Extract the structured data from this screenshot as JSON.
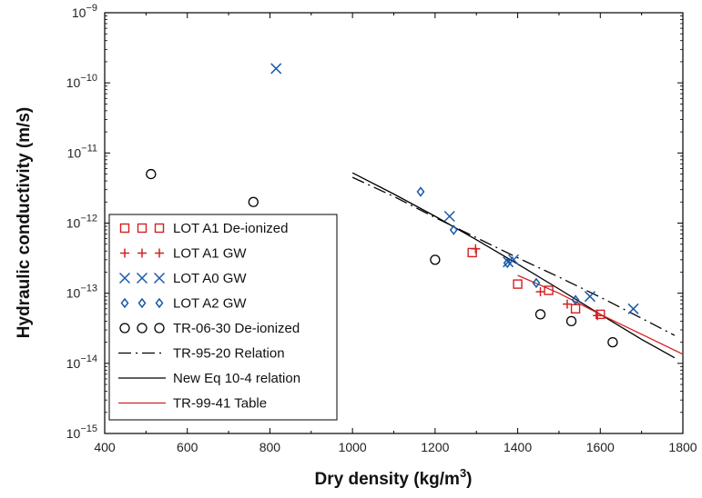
{
  "chart_data": {
    "type": "scatter",
    "title": "",
    "xlabel_main": "Dry density (kg/m",
    "xlabel_sup": "3",
    "xlabel_end": ")",
    "ylabel": "Hydraulic conductivity (m/s)",
    "xlim": [
      400,
      1800
    ],
    "ylim_log10": [
      -15,
      -9
    ],
    "yscale": "log",
    "grid": false,
    "legend_position": "left-bottom",
    "x_ticks": [
      "400",
      "600",
      "800",
      "1000",
      "1200",
      "1400",
      "1600",
      "1800"
    ],
    "x_tick_values": [
      400,
      600,
      800,
      1000,
      1200,
      1400,
      1600,
      1800
    ],
    "y_ticks": [
      {
        "exp": -9,
        "base": "10",
        "sup": "−9"
      },
      {
        "exp": -10,
        "base": "10",
        "sup": "−10"
      },
      {
        "exp": -11,
        "base": "10",
        "sup": "−11"
      },
      {
        "exp": -12,
        "base": "10",
        "sup": "−12"
      },
      {
        "exp": -13,
        "base": "10",
        "sup": "−13"
      },
      {
        "exp": -14,
        "base": "10",
        "sup": "−14"
      },
      {
        "exp": -15,
        "base": "10",
        "sup": "−15"
      }
    ],
    "series": [
      {
        "name": "LOT A1 De-ionized",
        "marker": "square",
        "color": "#d42020",
        "x": [
          1290,
          1400,
          1475,
          1540,
          1600
        ],
        "y": [
          3.8e-13,
          1.35e-13,
          1.1e-13,
          6e-14,
          5e-14
        ]
      },
      {
        "name": "LOT A1 GW",
        "marker": "plus",
        "color": "#d42020",
        "x": [
          1298,
          1455,
          1520,
          1593
        ],
        "y": [
          4.3e-13,
          1.05e-13,
          7e-14,
          4.8e-14
        ]
      },
      {
        "name": "LOT A0 GW",
        "marker": "x",
        "color": "#1a5aa8",
        "x": [
          815,
          1235,
          1377,
          1390,
          1575,
          1680
        ],
        "y": [
          1.6e-10,
          1.25e-12,
          2.8e-13,
          3e-13,
          9e-14,
          6e-14
        ]
      },
      {
        "name": "LOT A2 GW",
        "marker": "diamond",
        "color": "#1a5aa8",
        "x": [
          1165,
          1245,
          1375,
          1445,
          1540
        ],
        "y": [
          2.8e-12,
          8e-13,
          2.7e-13,
          1.4e-13,
          8e-14
        ]
      },
      {
        "name": "TR-06-30 De-ionized",
        "marker": "circle",
        "color": "#000000",
        "x": [
          512,
          760,
          1200,
          1455,
          1530,
          1630
        ],
        "y": [
          5e-12,
          2e-12,
          3e-13,
          5e-14,
          4e-14,
          2e-14
        ]
      },
      {
        "name": "TR-95-20 Relation",
        "marker": "dashdot",
        "color": "#000000",
        "x": [
          1000,
          1100,
          1200,
          1300,
          1400,
          1500,
          1600,
          1700,
          1780
        ],
        "y": [
          4.5e-12,
          2.4e-12,
          1.2e-12,
          6.2e-13,
          3.2e-13,
          1.7e-13,
          8.8e-14,
          4.4e-14,
          2.5e-14
        ]
      },
      {
        "name": "New Eq 10-4 relation",
        "marker": "solid",
        "color": "#000000",
        "x": [
          1000,
          1100,
          1200,
          1300,
          1400,
          1500,
          1600,
          1700,
          1780
        ],
        "y": [
          5.2e-12,
          2.6e-12,
          1.25e-12,
          5.8e-13,
          2.6e-13,
          1.15e-13,
          5e-14,
          2.2e-14,
          1.2e-14
        ]
      },
      {
        "name": "TR-99-41 Table",
        "marker": "redline",
        "color": "#d42020",
        "x": [
          1400,
          1500,
          1600,
          1700,
          1800
        ],
        "y": [
          1.8e-13,
          1e-13,
          5e-14,
          2.6e-14,
          1.35e-14
        ]
      }
    ]
  }
}
